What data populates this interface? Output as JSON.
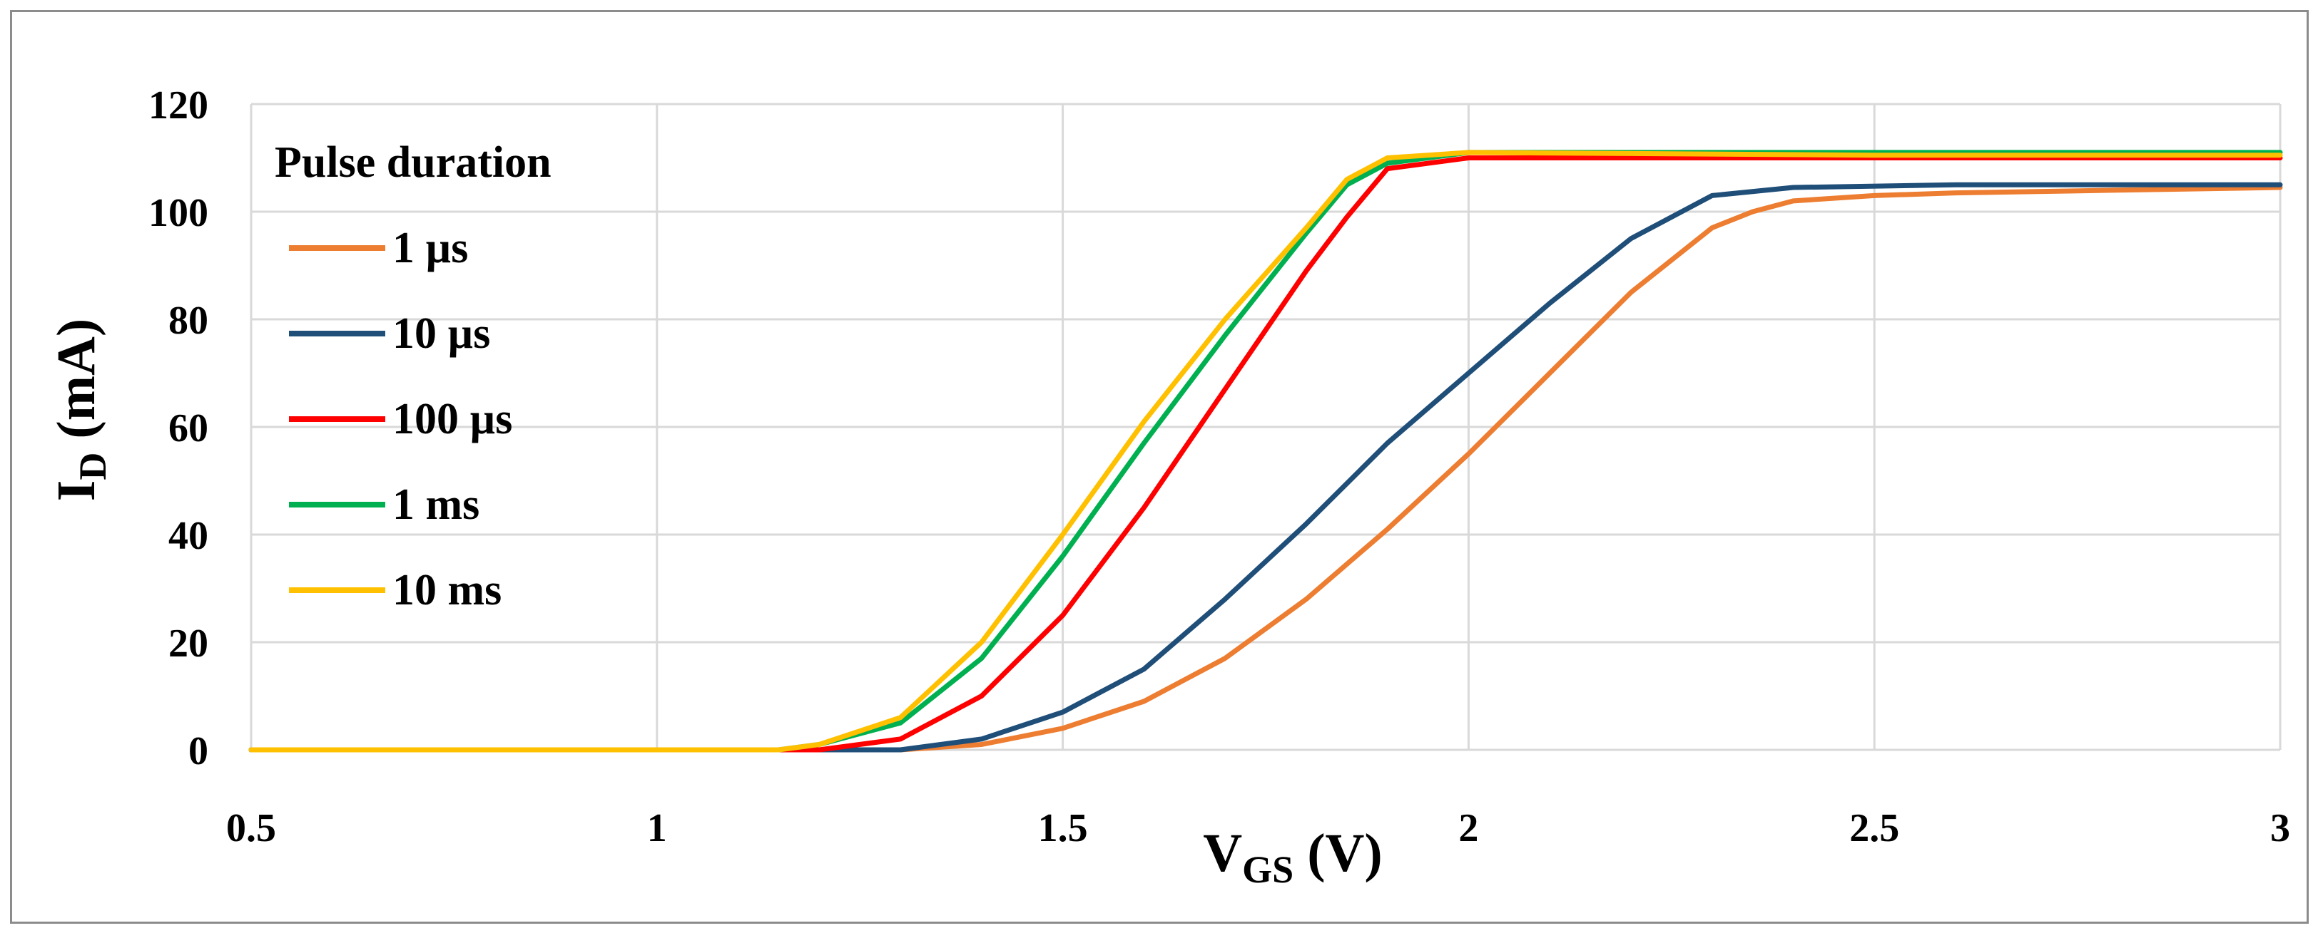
{
  "chart_data": {
    "type": "line",
    "xlabel": "V",
    "xlabel_sub": "GS",
    "xlabel_unit": " (V)",
    "ylabel": "I",
    "ylabel_sub": "D",
    "ylabel_unit": " (mA)",
    "xlim": [
      0.5,
      3
    ],
    "ylim": [
      0,
      120
    ],
    "x_ticks": [
      "0.5",
      "1",
      "1.5",
      "2",
      "2.5",
      "3"
    ],
    "y_ticks": [
      "0",
      "20",
      "40",
      "60",
      "80",
      "100",
      "120"
    ],
    "grid": true,
    "legend": {
      "title": "Pulse duration",
      "placement": "top-left"
    },
    "series": [
      {
        "name": "1 µs",
        "color": "#ed7d31",
        "x": [
          0.5,
          1.0,
          1.3,
          1.4,
          1.5,
          1.6,
          1.7,
          1.8,
          1.9,
          2.0,
          2.1,
          2.2,
          2.3,
          2.35,
          2.4,
          2.5,
          2.6,
          2.8,
          3.0
        ],
        "y": [
          0,
          0,
          0,
          1,
          4,
          9,
          17,
          28,
          41,
          55,
          70,
          85,
          97,
          100,
          102,
          103,
          103.5,
          104,
          104.5
        ]
      },
      {
        "name": "10 µs",
        "color": "#1f4e79",
        "x": [
          0.5,
          1.0,
          1.3,
          1.4,
          1.5,
          1.6,
          1.7,
          1.8,
          1.9,
          2.0,
          2.1,
          2.2,
          2.3,
          2.4,
          2.6,
          2.8,
          3.0
        ],
        "y": [
          0,
          0,
          0,
          2,
          7,
          15,
          28,
          42,
          57,
          70,
          83,
          95,
          103,
          104.5,
          105,
          105,
          105
        ]
      },
      {
        "name": "100 µs",
        "color": "#ff0000",
        "x": [
          0.5,
          1.0,
          1.2,
          1.3,
          1.4,
          1.5,
          1.6,
          1.7,
          1.8,
          1.85,
          1.9,
          2.0,
          2.5,
          3.0
        ],
        "y": [
          0,
          0,
          0,
          2,
          10,
          25,
          45,
          67,
          89,
          99,
          108,
          110,
          110,
          110
        ]
      },
      {
        "name": "1 ms",
        "color": "#00b050",
        "x": [
          0.5,
          1.0,
          1.15,
          1.2,
          1.3,
          1.4,
          1.5,
          1.6,
          1.7,
          1.8,
          1.85,
          1.9,
          1.95,
          2.0,
          2.5,
          3.0
        ],
        "y": [
          0,
          0,
          0,
          1,
          5,
          17,
          36,
          57,
          77,
          96,
          105,
          109,
          110,
          111,
          111,
          111
        ]
      },
      {
        "name": "10 ms",
        "color": "#ffc000",
        "x": [
          0.5,
          1.0,
          1.15,
          1.2,
          1.3,
          1.4,
          1.5,
          1.6,
          1.7,
          1.8,
          1.85,
          1.9,
          1.95,
          2.0,
          2.5,
          3.0
        ],
        "y": [
          0,
          0,
          0,
          1,
          6,
          20,
          40,
          61,
          80,
          97,
          106,
          110,
          110.5,
          111,
          110.5,
          110.5
        ]
      }
    ]
  }
}
